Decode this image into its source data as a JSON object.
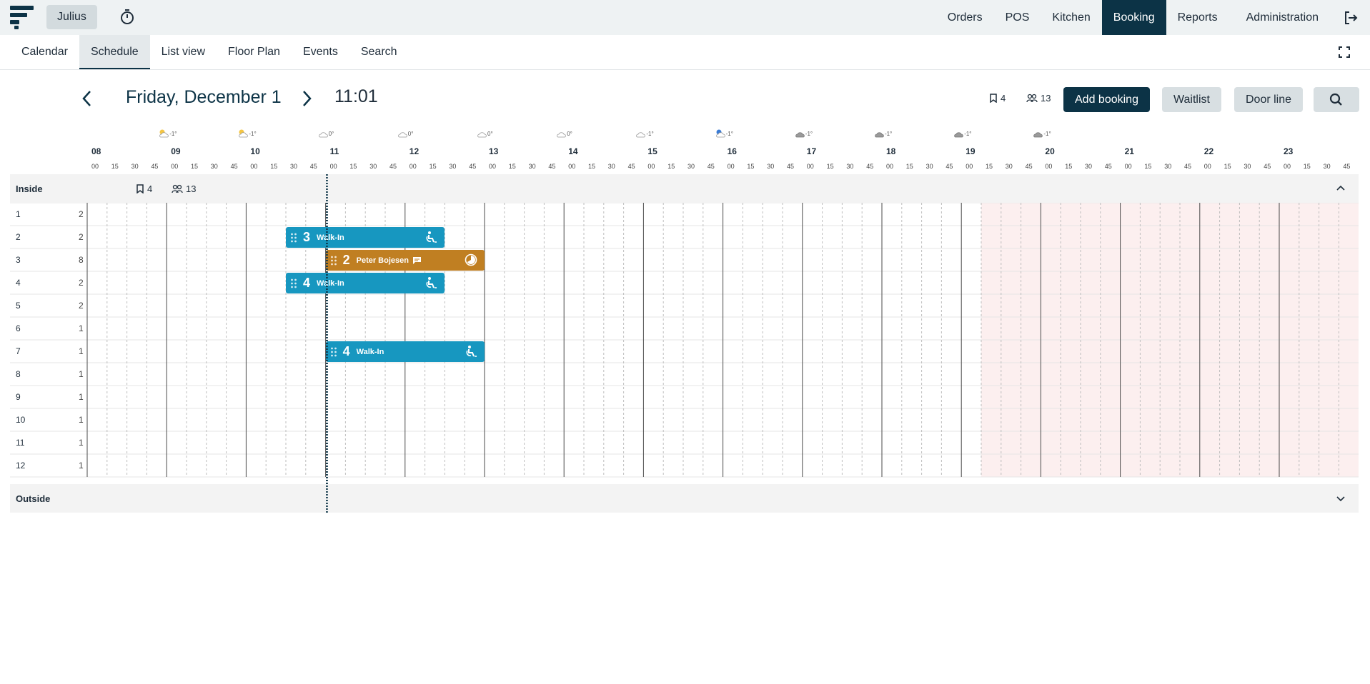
{
  "header": {
    "user_label": "Julius",
    "nav": [
      "Orders",
      "POS",
      "Kitchen",
      "Booking",
      "Reports",
      "Administration"
    ],
    "active_nav": "Booking"
  },
  "subnav": {
    "tabs": [
      "Calendar",
      "Schedule",
      "List view",
      "Floor Plan",
      "Events",
      "Search"
    ],
    "active_tab": "Schedule"
  },
  "toolbar": {
    "date": "Friday, December 1",
    "time": "11:01",
    "bookings_count": "4",
    "guests_count": "13",
    "add_booking": "Add booking",
    "waitlist": "Waitlist",
    "door_line": "Door line"
  },
  "timeline": {
    "hours": [
      "08",
      "09",
      "10",
      "11",
      "12",
      "13",
      "14",
      "15",
      "16",
      "17",
      "18",
      "19",
      "20",
      "21",
      "22",
      "23"
    ],
    "minutes": [
      "00",
      "15",
      "30",
      "45"
    ],
    "weather": [
      {
        "icon": "sun-cloud-icon",
        "temp": "-1°"
      },
      {
        "icon": "sun-cloud-icon",
        "temp": "-1°"
      },
      {
        "icon": "cloud-icon",
        "temp": "0°"
      },
      {
        "icon": "cloud-icon",
        "temp": "0°"
      },
      {
        "icon": "cloud-icon",
        "temp": "0°"
      },
      {
        "icon": "cloud-icon",
        "temp": "0°"
      },
      {
        "icon": "cloud-icon",
        "temp": "-1°"
      },
      {
        "icon": "moon-cloud-icon",
        "temp": "-1°"
      },
      {
        "icon": "dark-cloud-icon",
        "temp": "-1°"
      },
      {
        "icon": "dark-cloud-icon",
        "temp": "-1°"
      },
      {
        "icon": "dark-cloud-icon",
        "temp": "-1°"
      },
      {
        "icon": "dark-cloud-icon",
        "temp": "-1°"
      }
    ],
    "current_time": "11:01",
    "closed_from": "19:15"
  },
  "sections": [
    {
      "name": "Inside",
      "bookings_count": "4",
      "guests_count": "13",
      "expanded": true,
      "tables": [
        {
          "number": "1",
          "capacity": "2"
        },
        {
          "number": "2",
          "capacity": "2"
        },
        {
          "number": "3",
          "capacity": "8"
        },
        {
          "number": "4",
          "capacity": "2"
        },
        {
          "number": "5",
          "capacity": "2"
        },
        {
          "number": "6",
          "capacity": "1"
        },
        {
          "number": "7",
          "capacity": "1"
        },
        {
          "number": "8",
          "capacity": "1"
        },
        {
          "number": "9",
          "capacity": "1"
        },
        {
          "number": "10",
          "capacity": "1"
        },
        {
          "number": "11",
          "capacity": "1"
        },
        {
          "number": "12",
          "capacity": "1"
        }
      ]
    },
    {
      "name": "Outside",
      "expanded": false
    }
  ],
  "bookings": [
    {
      "table": "2",
      "guests": "3",
      "name": "Walk-In",
      "start": "10:30",
      "end": "12:30",
      "color": "#1797c0",
      "icon": "walk-in-icon",
      "has_note": false
    },
    {
      "table": "3",
      "guests": "2",
      "name": "Peter Bojesen",
      "start": "11:00",
      "end": "13:00",
      "color": "#c07f22",
      "icon": "clock-progress-icon",
      "has_note": true
    },
    {
      "table": "4",
      "guests": "4",
      "name": "Walk-In",
      "start": "10:30",
      "end": "12:30",
      "color": "#1797c0",
      "icon": "walk-in-icon",
      "has_note": false
    },
    {
      "table": "7",
      "guests": "4",
      "name": "Walk-In",
      "start": "11:00",
      "end": "13:00",
      "color": "#1797c0",
      "icon": "walk-in-icon",
      "has_note": false
    }
  ],
  "colors": {
    "primary": "#0c3346",
    "walk_in": "#1797c0",
    "reservation": "#c07f22",
    "closed": "#fcefef"
  }
}
